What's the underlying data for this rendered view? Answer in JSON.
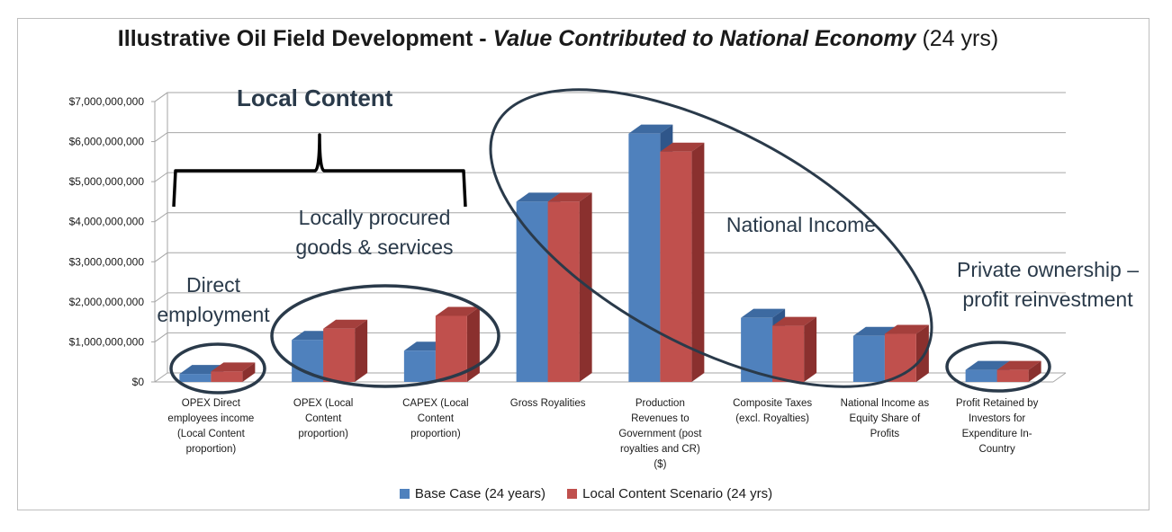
{
  "title": {
    "part1": "Illustrative Oil Field Development - ",
    "part2": "Value Contributed to National Economy",
    "part3": " (24 yrs)"
  },
  "colors": {
    "base_front": "#4f81bd",
    "base_top": "#3d6aa1",
    "base_side": "#2f568a",
    "local_front": "#c0504d",
    "local_top": "#a43f3c",
    "local_side": "#8a302e",
    "grid": "#a6a6a6",
    "annotation": "#2a3a4a"
  },
  "annotations": {
    "local_content": "Local Content",
    "locally_procured_line1": "Locally procured",
    "locally_procured_line2": "goods & services",
    "direct_line1": "Direct",
    "direct_line2": "employment",
    "national_income": "National Income",
    "private_line1": "Private ownership –",
    "private_line2": "profit reinvestment"
  },
  "chart_data": {
    "type": "bar",
    "title": "Illustrative Oil Field Development - Value Contributed to National Economy (24 yrs)",
    "categories": [
      [
        "OPEX Direct",
        "employees income",
        "(Local Content",
        "proportion)"
      ],
      [
        "OPEX (Local",
        "Content",
        "proportion)"
      ],
      [
        "CAPEX (Local",
        "Content",
        "proportion)"
      ],
      [
        "Gross Royalities"
      ],
      [
        "Production",
        "Revenues to",
        "Government (post",
        "royalties and CR)",
        "($)"
      ],
      [
        "Composite Taxes",
        "(excl. Royalties)"
      ],
      [
        "National Income as",
        "Equity Share of",
        "Profits"
      ],
      [
        "Profit Retained by",
        "Investors for",
        "Expenditure In-",
        "Country"
      ]
    ],
    "series": [
      {
        "name": "Base Case (24 years)",
        "values": [
          200000000,
          1050000000,
          780000000,
          4500000000,
          6200000000,
          1600000000,
          1150000000,
          300000000
        ]
      },
      {
        "name": "Local Content Scenario (24 yrs)",
        "values": [
          260000000,
          1330000000,
          1650000000,
          4500000000,
          5750000000,
          1400000000,
          1200000000,
          300000000
        ]
      }
    ],
    "yticks": [
      "$0",
      "$1,000,000,000",
      "$2,000,000,000",
      "$3,000,000,000",
      "$4,000,000,000",
      "$5,000,000,000",
      "$6,000,000,000",
      "$7,000,000,000"
    ],
    "ylim": [
      0,
      7000000000
    ],
    "grid": true,
    "legend": "bottom"
  }
}
